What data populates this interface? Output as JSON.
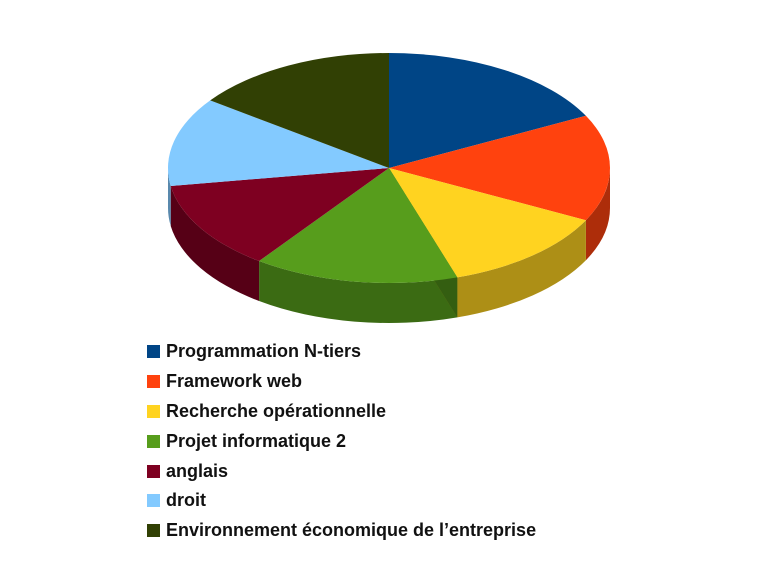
{
  "chart_data": {
    "type": "pie",
    "three_d": true,
    "legend_position": "bottom",
    "series": [
      {
        "name": "Programmation N-tiers",
        "value": 17.5,
        "color": "#004586"
      },
      {
        "name": "Framework web",
        "value": 15,
        "color": "#ff420e"
      },
      {
        "name": "Recherche opérationnelle",
        "value": 12.5,
        "color": "#ffd320"
      },
      {
        "name": "Projet informatique 2",
        "value": 15,
        "color": "#579d1c"
      },
      {
        "name": "anglais",
        "value": 12.5,
        "color": "#7e0021"
      },
      {
        "name": "droit",
        "value": 12.5,
        "color": "#83caff"
      },
      {
        "name": "Environnement économique de l’entreprise",
        "value": 15,
        "color": "#314004"
      }
    ]
  }
}
